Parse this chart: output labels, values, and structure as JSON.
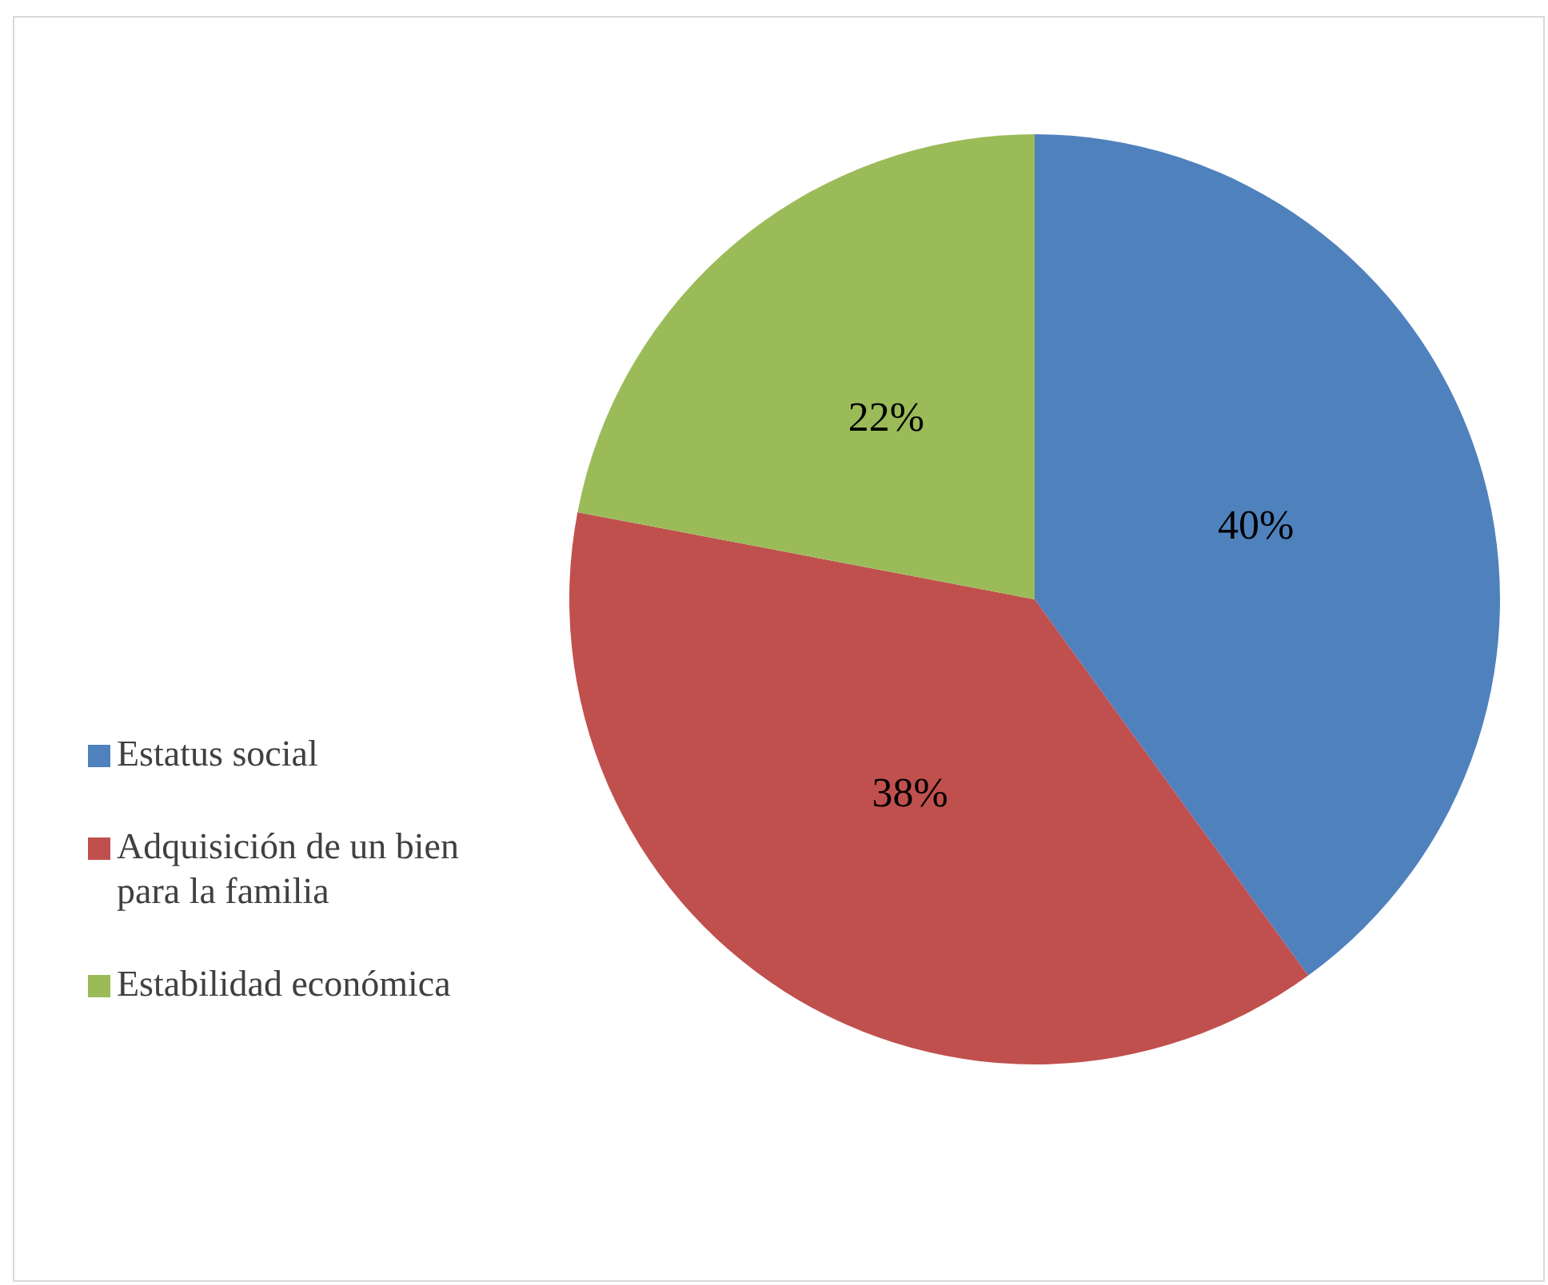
{
  "chart_data": {
    "type": "pie",
    "categories": [
      "Estatus social",
      "Adquisición de un bien para la familia",
      "Estabilidad económica"
    ],
    "values": [
      40,
      38,
      22
    ],
    "colors": [
      "#4f81bd",
      "#c0504d",
      "#9bbb59"
    ],
    "value_labels": [
      "40%",
      "38%",
      "22%"
    ],
    "legend": "left"
  }
}
